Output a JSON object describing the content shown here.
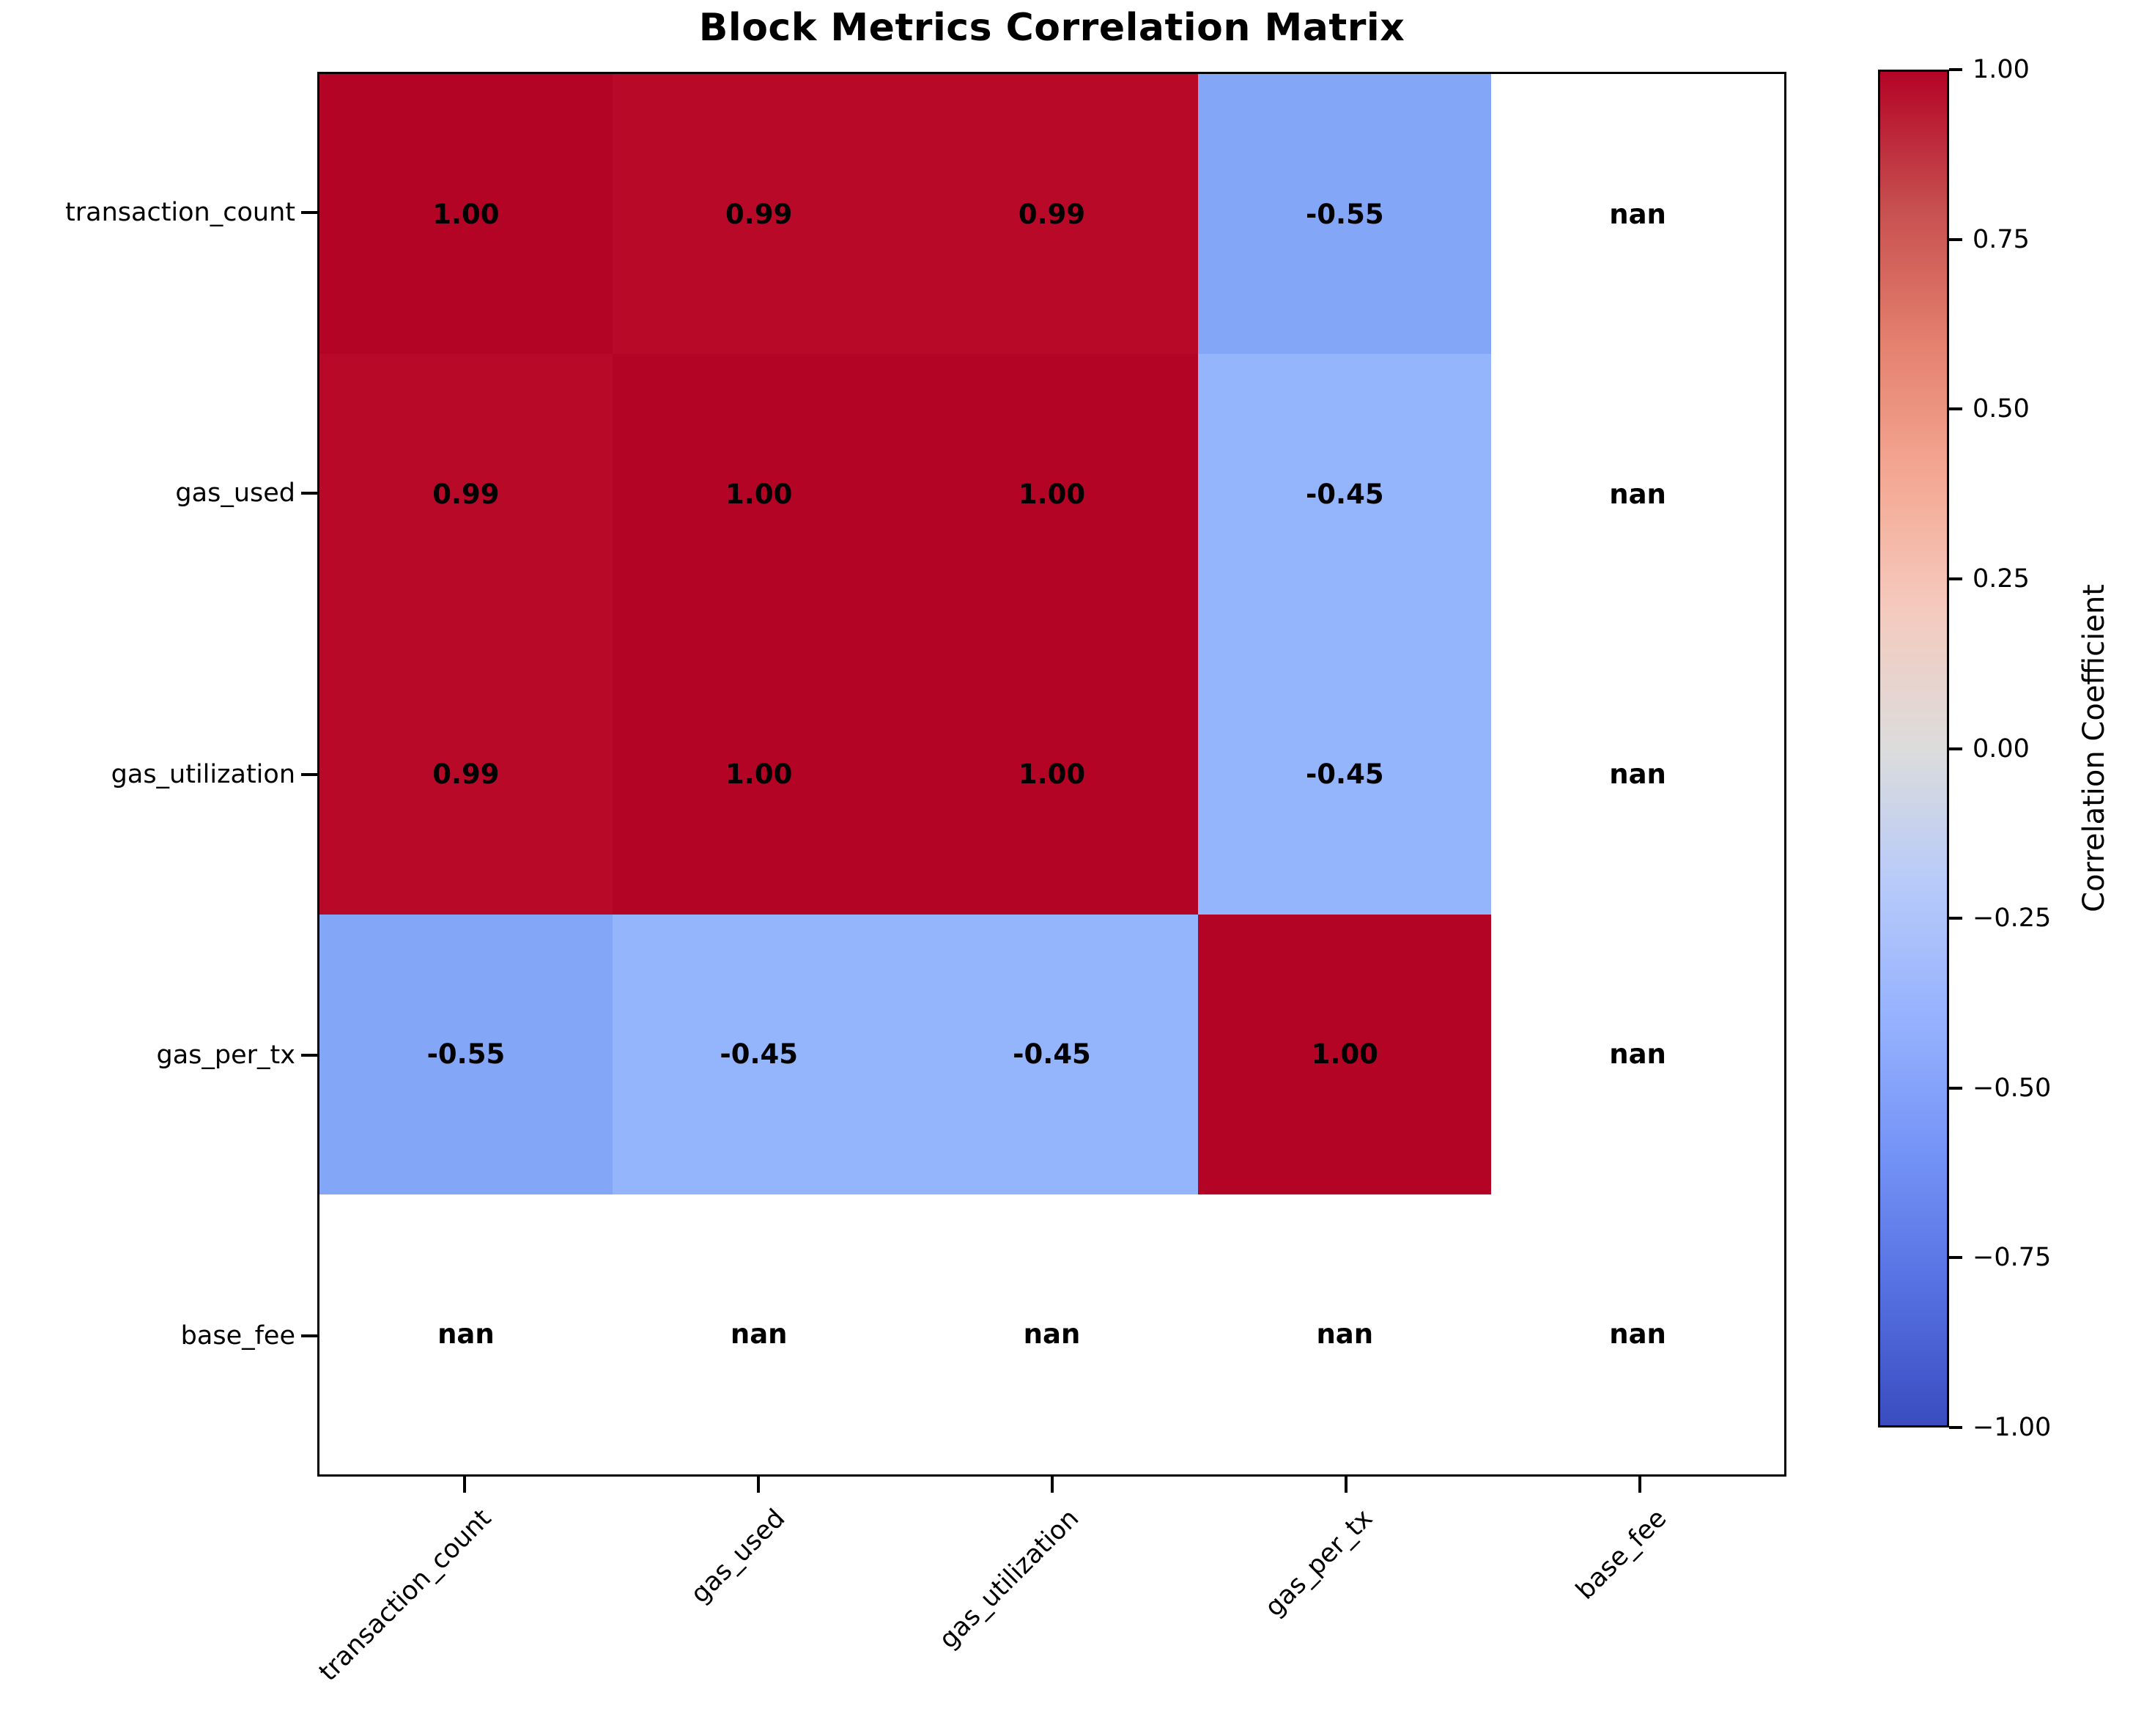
{
  "title": "Block Metrics Correlation Matrix",
  "chart_data": {
    "type": "heatmap",
    "x_labels": [
      "transaction_count",
      "gas_used",
      "gas_utilization",
      "gas_per_tx",
      "base_fee"
    ],
    "y_labels": [
      "transaction_count",
      "gas_used",
      "gas_utilization",
      "gas_per_tx",
      "base_fee"
    ],
    "matrix": [
      [
        1.0,
        0.99,
        0.99,
        -0.55,
        null
      ],
      [
        0.99,
        1.0,
        1.0,
        -0.45,
        null
      ],
      [
        0.99,
        1.0,
        1.0,
        -0.45,
        null
      ],
      [
        -0.55,
        -0.45,
        -0.45,
        1.0,
        null
      ],
      [
        null,
        null,
        null,
        null,
        null
      ]
    ],
    "cell_labels": [
      [
        "1.00",
        "0.99",
        "0.99",
        "-0.55",
        "nan"
      ],
      [
        "0.99",
        "1.00",
        "1.00",
        "-0.45",
        "nan"
      ],
      [
        "0.99",
        "1.00",
        "1.00",
        "-0.45",
        "nan"
      ],
      [
        "-0.55",
        "-0.45",
        "-0.45",
        "1.00",
        "nan"
      ],
      [
        "nan",
        "nan",
        "nan",
        "nan",
        "nan"
      ]
    ],
    "cell_colors": [
      [
        "#b40426",
        "#b80929",
        "#b80929",
        "#84a6f7",
        "#ffffff"
      ],
      [
        "#b80929",
        "#b40426",
        "#b40426",
        "#94b4fb",
        "#ffffff"
      ],
      [
        "#b80929",
        "#b40426",
        "#b40426",
        "#94b4fb",
        "#ffffff"
      ],
      [
        "#84a6f7",
        "#94b4fb",
        "#94b4fb",
        "#b40426",
        "#ffffff"
      ],
      [
        "#ffffff",
        "#ffffff",
        "#ffffff",
        "#ffffff",
        "#ffffff"
      ]
    ],
    "value_range": [
      -1,
      1
    ],
    "colormap": "coolwarm",
    "grid": false,
    "colorbar": {
      "label": "Correlation Coefficient",
      "ticks": [
        "1.00",
        "0.75",
        "0.50",
        "0.25",
        "0.00",
        "−0.25",
        "−0.50",
        "−0.75",
        "−1.00"
      ]
    }
  },
  "colors": {
    "corr_positive_max": "#b40426",
    "corr_positive_high": "#b80929",
    "corr_negative_055": "#84a6f7",
    "corr_negative_045": "#94b4fb",
    "nan_cell": "#ffffff",
    "text": "#000000"
  }
}
